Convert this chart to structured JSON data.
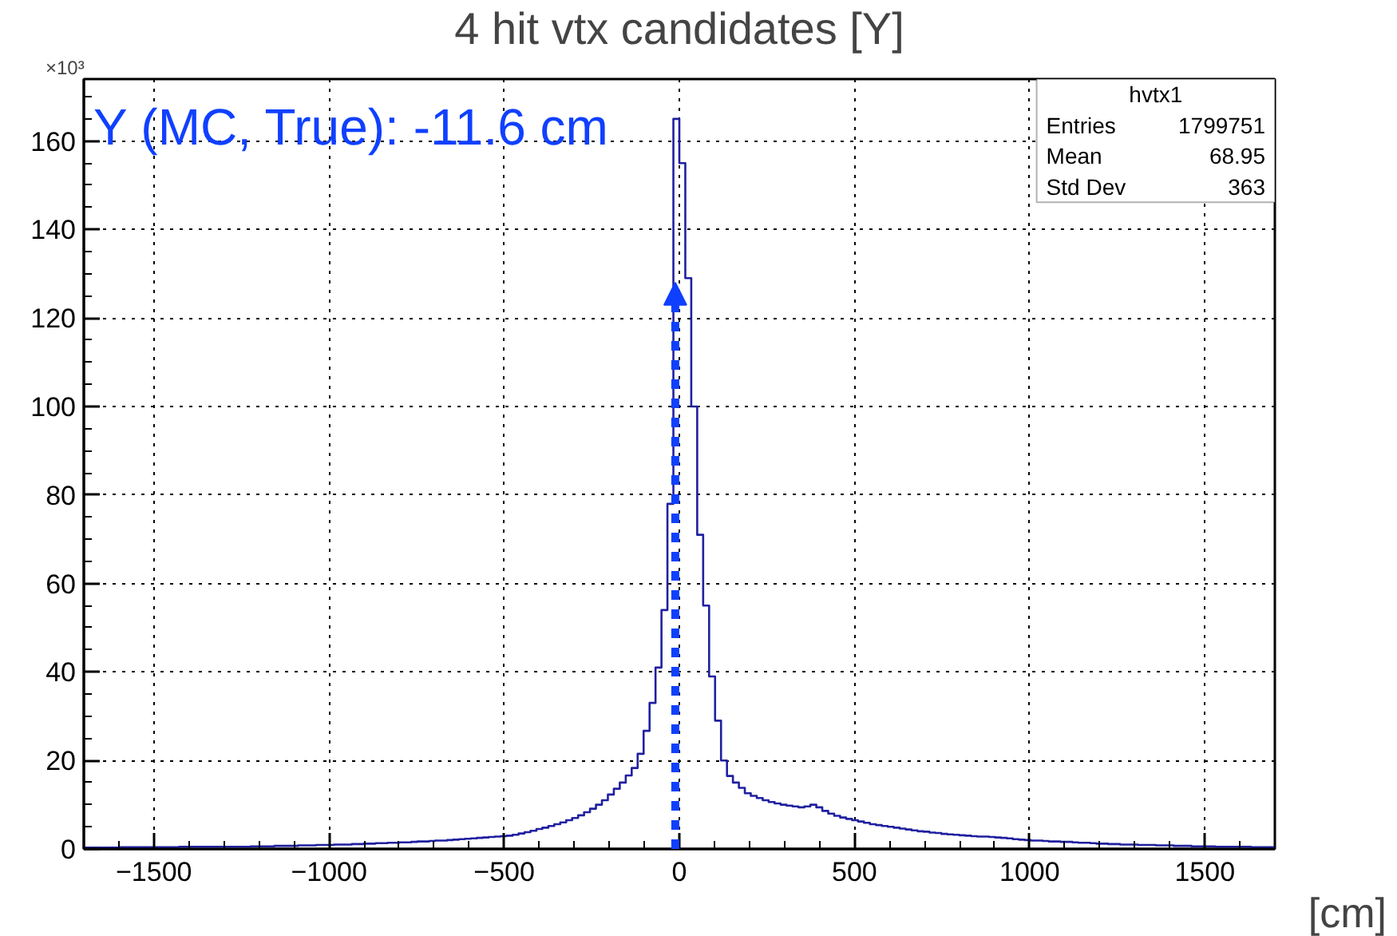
{
  "chart_data": {
    "type": "histogram",
    "title": "4 hit vtx candidates [Y]",
    "xlabel": "[cm]",
    "color": "#2020a0",
    "bins": [
      -1700,
      -1683,
      -1666,
      -1649,
      -1632,
      -1615,
      -1598,
      -1581,
      -1564,
      -1547,
      -1530,
      -1513,
      -1496,
      -1479,
      -1462,
      -1445,
      -1428,
      -1411,
      -1394,
      -1377,
      -1360,
      -1343,
      -1326,
      -1309,
      -1292,
      -1275,
      -1258,
      -1241,
      -1224,
      -1207,
      -1190,
      -1173,
      -1156,
      -1139,
      -1122,
      -1105,
      -1088,
      -1071,
      -1054,
      -1037,
      -1020,
      -1003,
      -986,
      -969,
      -952,
      -935,
      -918,
      -901,
      -884,
      -867,
      -850,
      -833,
      -816,
      -799,
      -782,
      -765,
      -748,
      -731,
      -714,
      -697,
      -680,
      -663,
      -646,
      -629,
      -612,
      -595,
      -578,
      -561,
      -544,
      -527,
      -510,
      -493,
      -476,
      -459,
      -442,
      -425,
      -408,
      -391,
      -374,
      -357,
      -340,
      -323,
      -306,
      -289,
      -272,
      -255,
      -238,
      -221,
      -204,
      -187,
      -170,
      -153,
      -136,
      -119,
      -102,
      -85,
      -68,
      -51,
      -34,
      -17,
      0,
      17,
      34,
      51,
      68,
      85,
      102,
      119,
      136,
      153,
      170,
      187,
      204,
      221,
      238,
      255,
      272,
      289,
      306,
      323,
      340,
      357,
      374,
      391,
      408,
      425,
      442,
      459,
      476,
      493,
      510,
      527,
      544,
      561,
      578,
      595,
      612,
      629,
      646,
      663,
      680,
      697,
      714,
      731,
      748,
      765,
      782,
      799,
      816,
      833,
      850,
      867,
      884,
      901,
      918,
      935,
      952,
      969,
      986,
      1003,
      1020,
      1037,
      1054,
      1071,
      1088,
      1105,
      1122,
      1139,
      1156,
      1173,
      1190,
      1207,
      1224,
      1241,
      1258,
      1275,
      1292,
      1309,
      1326,
      1343,
      1360,
      1377,
      1394,
      1411,
      1428,
      1445,
      1462,
      1479,
      1496,
      1513,
      1530,
      1547,
      1564,
      1581,
      1598,
      1615,
      1632,
      1649,
      1666,
      1683,
      1700
    ],
    "values": [
      0.3,
      0.3,
      0.3,
      0.3,
      0.3,
      0.3,
      0.4,
      0.4,
      0.4,
      0.4,
      0.4,
      0.4,
      0.4,
      0.4,
      0.4,
      0.4,
      0.5,
      0.5,
      0.5,
      0.5,
      0.5,
      0.5,
      0.5,
      0.5,
      0.5,
      0.5,
      0.5,
      0.5,
      0.6,
      0.6,
      0.6,
      0.6,
      0.7,
      0.7,
      0.7,
      0.7,
      0.8,
      0.8,
      0.8,
      0.9,
      0.9,
      0.9,
      1.0,
      1.0,
      1.0,
      1.1,
      1.1,
      1.2,
      1.2,
      1.3,
      1.3,
      1.4,
      1.4,
      1.5,
      1.5,
      1.6,
      1.7,
      1.7,
      1.8,
      1.9,
      1.9,
      2.0,
      2.1,
      2.2,
      2.3,
      2.4,
      2.5,
      2.6,
      2.7,
      2.8,
      2.9,
      3.0,
      3.2,
      3.5,
      3.8,
      4.1,
      4.5,
      4.8,
      5.2,
      5.6,
      6.0,
      6.5,
      7.0,
      7.6,
      8.3,
      9.1,
      10.0,
      11.0,
      12.3,
      13.6,
      15.0,
      16.6,
      18.3,
      21.5,
      26.7,
      33,
      41,
      54,
      78,
      165,
      155,
      129,
      100,
      71,
      55,
      39,
      29,
      20,
      16.5,
      15,
      13.8,
      12.6,
      12.0,
      11.5,
      11.0,
      10.6,
      10.3,
      10.0,
      9.8,
      9.6,
      9.4,
      9.6,
      10.0,
      9.4,
      8.6,
      8.0,
      7.5,
      7.1,
      6.8,
      6.5,
      6.2,
      5.9,
      5.6,
      5.4,
      5.2,
      5.0,
      4.8,
      4.6,
      4.4,
      4.2,
      4.0,
      3.9,
      3.7,
      3.6,
      3.4,
      3.3,
      3.2,
      3.1,
      3.0,
      2.9,
      2.8,
      2.8,
      2.7,
      2.6,
      2.5,
      2.4,
      2.2,
      2.1,
      2.0,
      1.9,
      1.9,
      1.8,
      1.7,
      1.7,
      1.6,
      1.6,
      1.5,
      1.4,
      1.4,
      1.3,
      1.2,
      1.2,
      1.1,
      1.1,
      1.0,
      1.0,
      1.0,
      0.9,
      0.9,
      0.9,
      0.8,
      0.8,
      0.8,
      0.7,
      0.7,
      0.7,
      0.6,
      0.6,
      0.6,
      0.6,
      0.5,
      0.5,
      0.5,
      0.5,
      0.5,
      0.5,
      0.4,
      0.4,
      0.4,
      0.4
    ],
    "xlim": [
      -1700,
      1700
    ],
    "ylim": [
      0,
      174
    ],
    "xticks": [
      {
        "value": -1500,
        "label": "−1500"
      },
      {
        "value": -1000,
        "label": "−1000"
      },
      {
        "value": -500,
        "label": "−500"
      },
      0,
      500,
      1000,
      1500
    ],
    "yticks": [
      0,
      20,
      40,
      60,
      80,
      100,
      120,
      140,
      160
    ],
    "grid": true,
    "annotations": [
      {
        "text": "Y (MC, True): -11.6 cm",
        "x": -11.6,
        "y": 128
      },
      "×10³",
      "hvtx1",
      "Entries 1799751",
      "Mean 68.95",
      "Std Dev 363"
    ]
  }
}
